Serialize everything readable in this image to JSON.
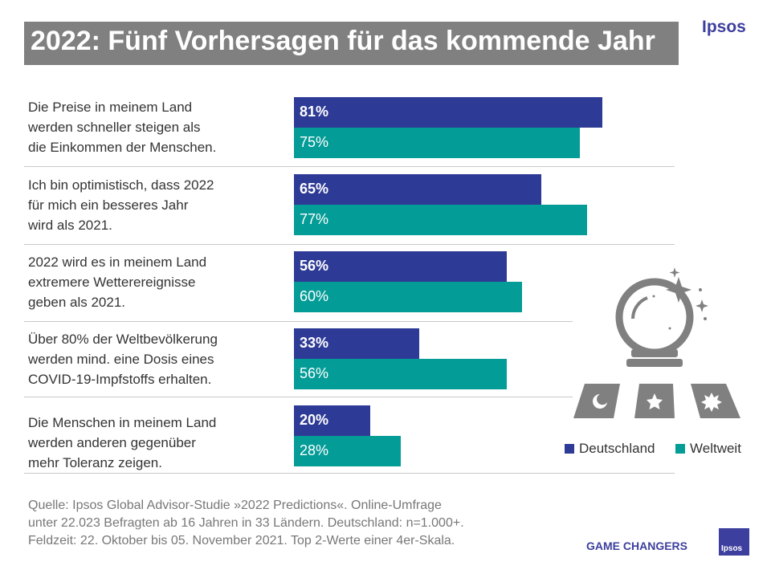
{
  "title": "2022: Fünf Vorhersagen für das kommende Jahr",
  "brand": "Ipsos",
  "colors": {
    "deutschland": "#2e3b96",
    "weltweit": "#049c97",
    "title_bg": "#808080",
    "brand": "#3d3f9e"
  },
  "chart_data": {
    "type": "bar",
    "orientation": "horizontal",
    "title": "2022: Fünf Vorhersagen für das kommende Jahr",
    "categories": [
      "Die Preise in meinem Land\nwerden schneller steigen als\ndie Einkommen der Menschen.",
      "Ich bin optimistisch, dass 2022\nfür mich ein besseres Jahr\nwird als 2021.",
      "2022 wird es in meinem Land\nextremere Wetterereignisse\ngeben als 2021.",
      "Über 80% der Weltbevölkerung\nwerden mind. eine Dosis eines\nCOVID-19-Impfstoffs erhalten.",
      "Die Menschen in meinem Land\nwerden anderen gegenüber\nmehr Toleranz zeigen."
    ],
    "series": [
      {
        "name": "Deutschland",
        "values": [
          81,
          65,
          56,
          33,
          20
        ],
        "labels": [
          "81%",
          "65%",
          "56%",
          "33%",
          "20%"
        ]
      },
      {
        "name": "Weltweit",
        "values": [
          75,
          77,
          60,
          56,
          28
        ],
        "labels": [
          "75%",
          "77%",
          "60%",
          "56%",
          "28%"
        ]
      }
    ],
    "unit": "%",
    "xlim": [
      0,
      100
    ],
    "legend": "bottom-right"
  },
  "legend": {
    "deutschland": "Deutschland",
    "weltweit": "Weltweit"
  },
  "source": "Quelle: Ipsos Global Advisor-Studie »2022 Predictions«. Online-Umfrage\nunter 22.023 Befragten ab 16 Jahren in 33 Ländern. Deutschland: n=1.000+.\nFeldzeit: 22. Oktober bis 05. November 2021. Top 2-Werte einer 4er-Skala.",
  "tagline": "GAME CHANGERS",
  "logo_text": "Ipsos",
  "decoration": {
    "icon": "crystal-ball-icon"
  }
}
